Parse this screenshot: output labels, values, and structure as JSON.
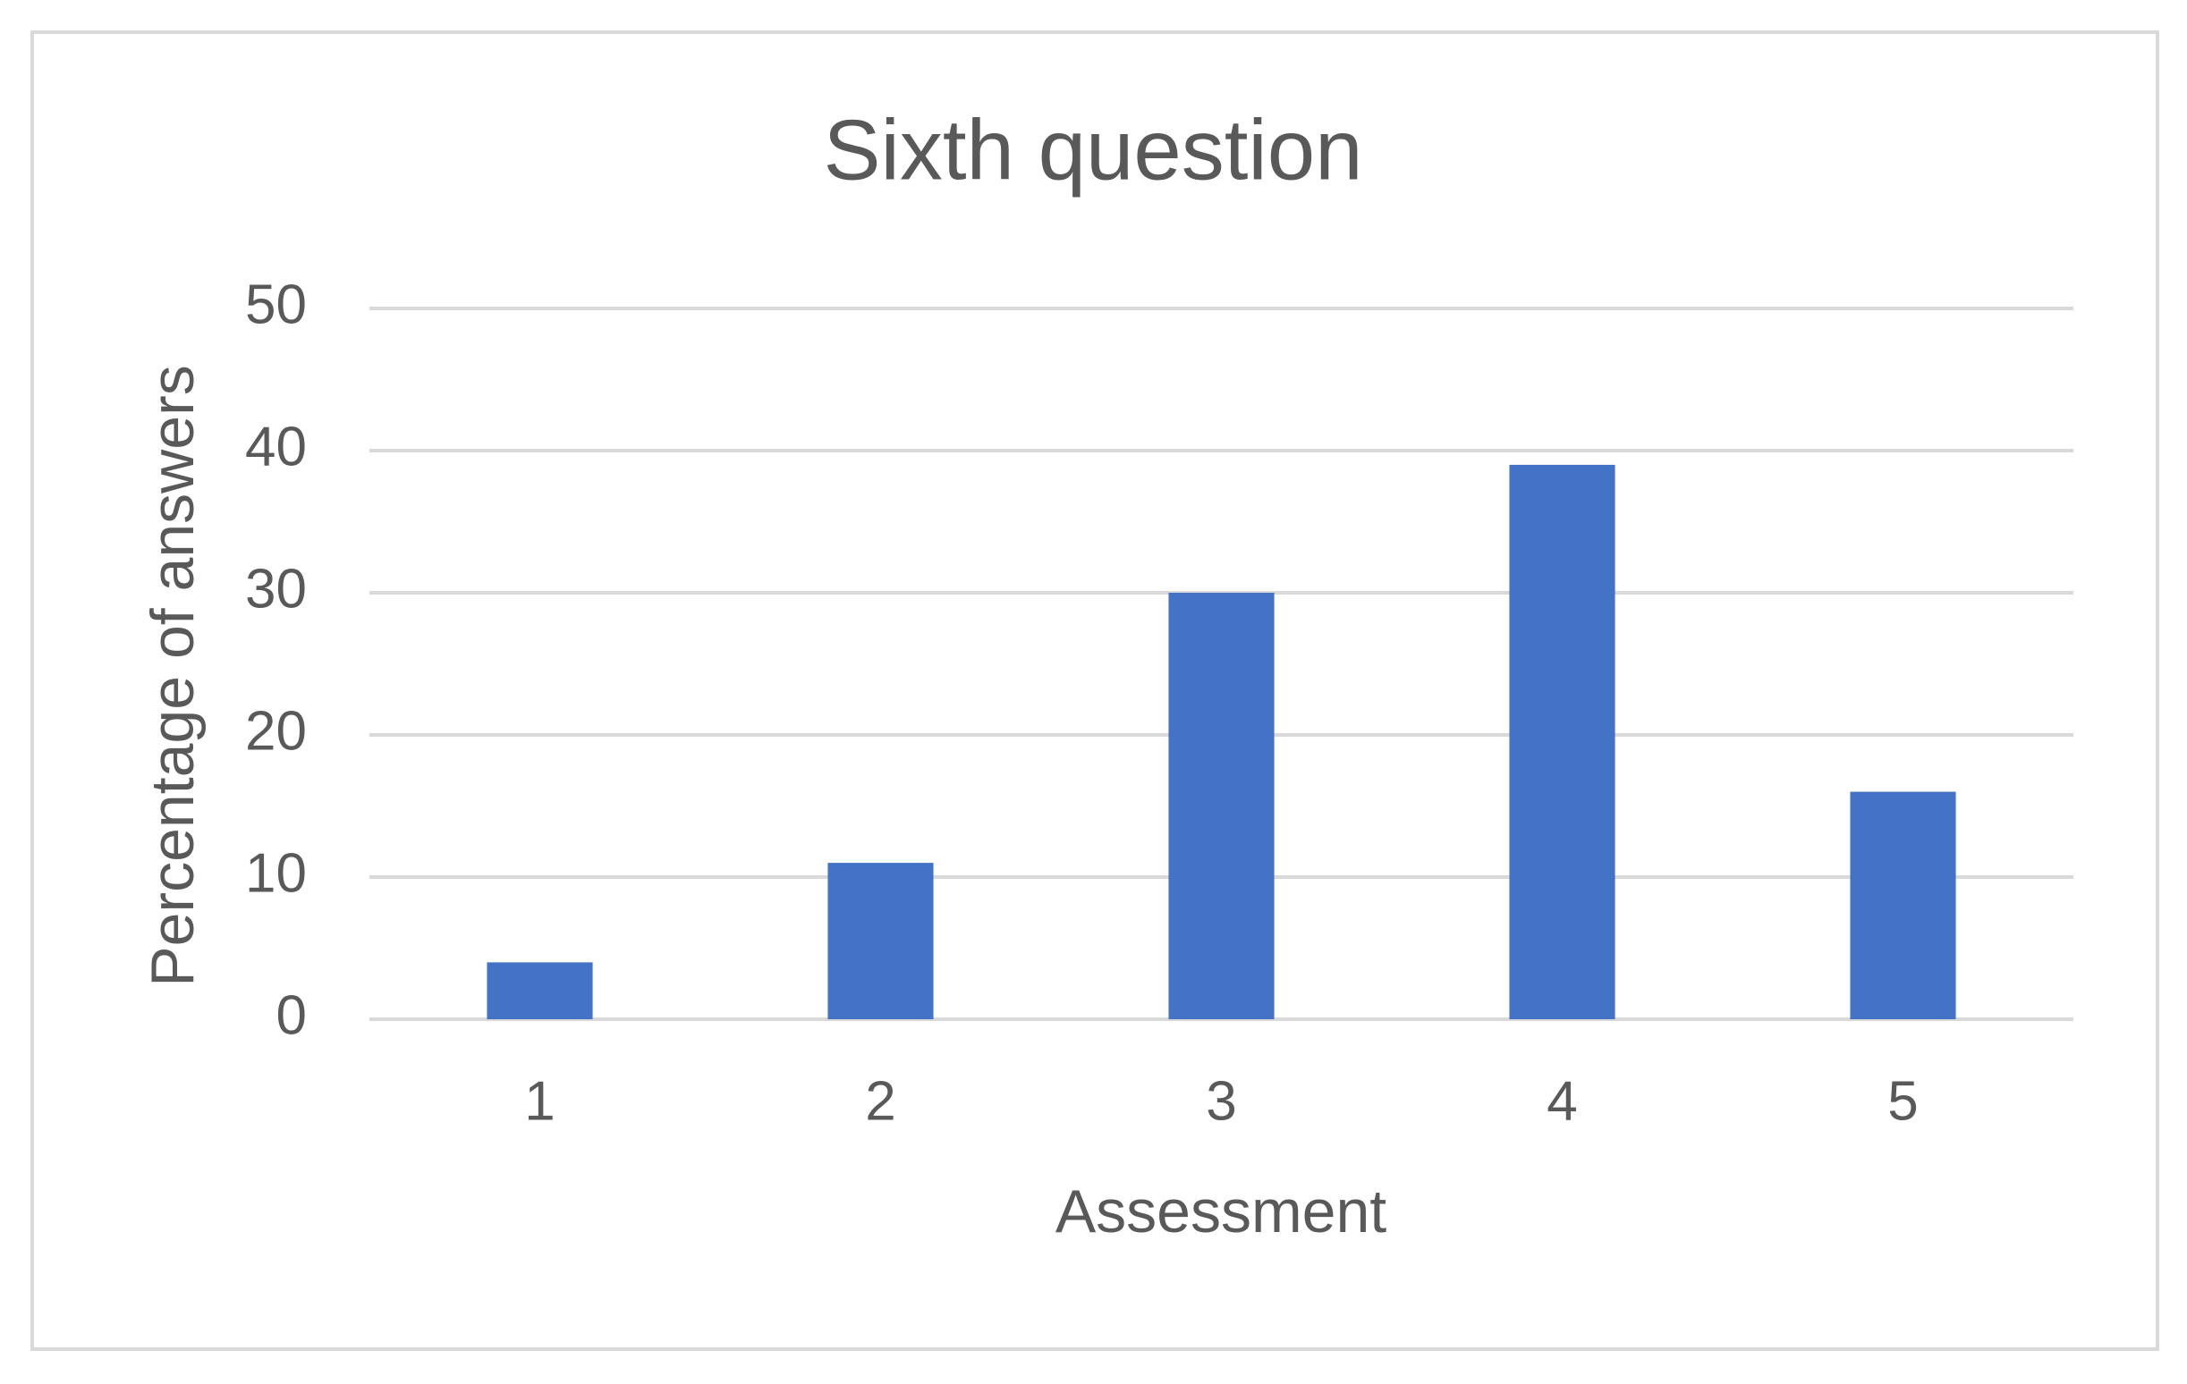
{
  "chart_data": {
    "type": "bar",
    "title": "Sixth question",
    "x_label": "Assessment",
    "y_label": "Percentage of answers",
    "categories": [
      "1",
      "2",
      "3",
      "4",
      "5"
    ],
    "values": [
      4,
      11,
      30,
      39,
      16
    ],
    "color": "#4472c4",
    "ylim": [
      0,
      50
    ],
    "yticks": [
      0,
      10,
      20,
      30,
      40,
      50
    ],
    "grid": true
  }
}
